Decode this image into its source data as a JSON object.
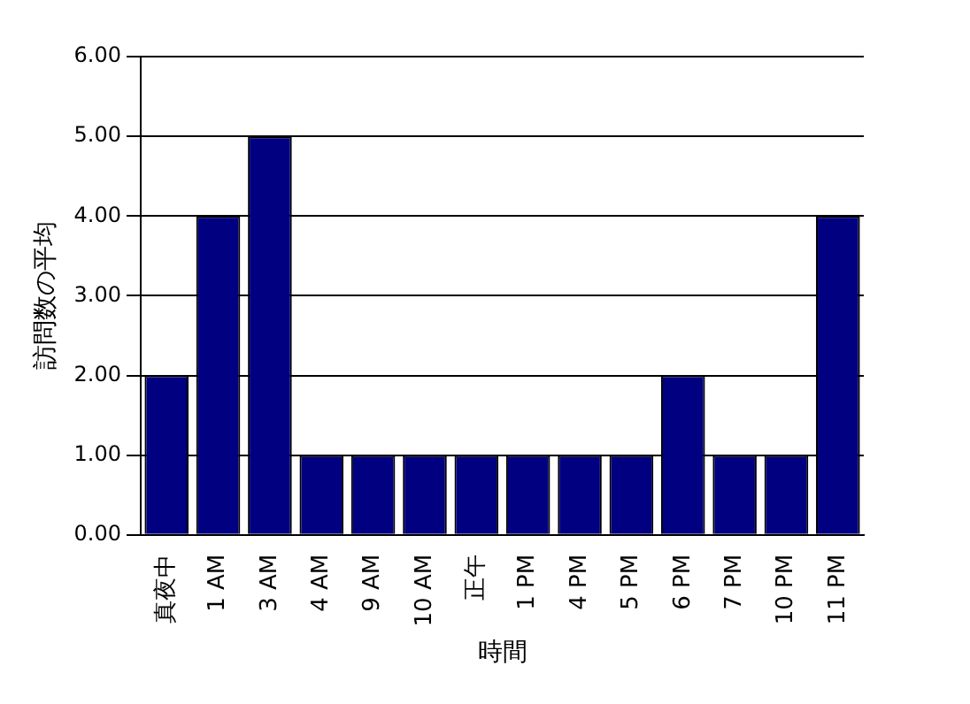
{
  "chart_data": {
    "type": "bar",
    "xlabel": "時間",
    "ylabel": "訪問数の平均",
    "categories": [
      "真夜中",
      "1 AM",
      "3 AM",
      "4 AM",
      "9 AM",
      "10 AM",
      "正午",
      "1 PM",
      "4 PM",
      "5 PM",
      "6 PM",
      "7 PM",
      "10 PM",
      "11 PM"
    ],
    "values": [
      2,
      4,
      5,
      1,
      1,
      1,
      1,
      1,
      1,
      1,
      2,
      1,
      1,
      4
    ],
    "color": "#000080",
    "ylim": [
      0,
      6
    ],
    "yticks": [
      {
        "value": 0,
        "label": "0.00"
      },
      {
        "value": 1,
        "label": "1.00"
      },
      {
        "value": 2,
        "label": "2.00"
      },
      {
        "value": 3,
        "label": "3.00"
      },
      {
        "value": 4,
        "label": "4.00"
      },
      {
        "value": 5,
        "label": "5.00"
      },
      {
        "value": 6,
        "label": "6.00"
      }
    ],
    "grid": "y"
  }
}
